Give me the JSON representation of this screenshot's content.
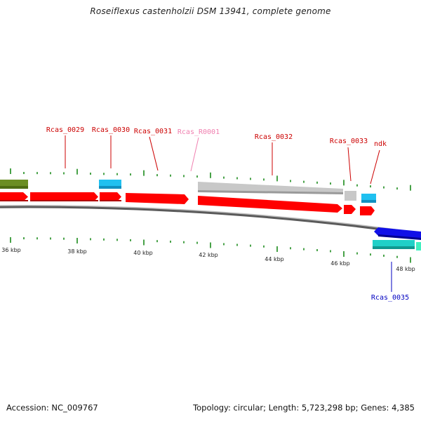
{
  "title": "Roseiflexus castenholzii DSM 13941, complete genome",
  "footer": {
    "accession_label": "Accession:",
    "accession": "NC_009767",
    "topology_label": "Topology:",
    "topology": "circular",
    "length_label": "Length:",
    "length": "5,723,298 bp",
    "genes_label": "Genes:",
    "genes": "4,385"
  },
  "colors": {
    "cds_forward": "#ff0000",
    "cds_reverse_blue": "#0000e0",
    "trna": "#20c0f0",
    "rrna": "#00d0c0",
    "olive": "#6b8e23",
    "pseudo_grey": "#bdbdbd",
    "rna_label": "#f080b0",
    "cds_label": "#cc0000",
    "reverse_label": "#0000c0",
    "tick": "#1a8a1a",
    "backbone": "#808080"
  },
  "scale_labels": [
    "36 kbp",
    "38 kbp",
    "40 kbp",
    "42 kbp",
    "44 kbp",
    "46 kbp",
    "48 kbp"
  ],
  "genes_labeled": [
    {
      "name": "Rcas_0029",
      "type": "CDS",
      "strand": "+"
    },
    {
      "name": "Rcas_0030",
      "type": "tRNA",
      "strand": "+"
    },
    {
      "name": "Rcas_0031",
      "type": "CDS",
      "strand": "+"
    },
    {
      "name": "Rcas_R0001",
      "type": "rRNA",
      "strand": "+"
    },
    {
      "name": "Rcas_0032",
      "type": "CDS",
      "strand": "+"
    },
    {
      "name": "Rcas_0033",
      "type": "CDS",
      "strand": "+"
    },
    {
      "name": "ndk",
      "type": "CDS",
      "strand": "+"
    },
    {
      "name": "Rcas_0035",
      "type": "CDS",
      "strand": "-"
    }
  ]
}
